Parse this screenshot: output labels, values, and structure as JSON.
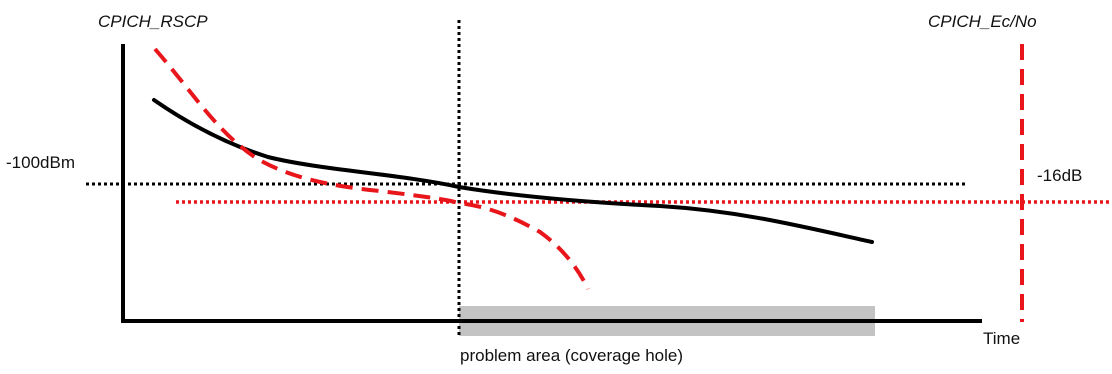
{
  "labels": {
    "left_axis": "CPICH_RSCP",
    "right_axis": "CPICH_Ec/No",
    "rscp_threshold": "-100dBm",
    "ecno_threshold": "-16dB",
    "time_axis": "Time",
    "problem_area": "problem area (coverage hole)"
  },
  "colors": {
    "axes": "#000000",
    "rscp_curve": "#000000",
    "ecno_curve": "#e8151b",
    "rscp_threshold_line": "#000000",
    "ecno_threshold_line": "#e8151b",
    "problem_area_fill": "#c3c3c3",
    "problem_boundary": "#000000"
  }
}
